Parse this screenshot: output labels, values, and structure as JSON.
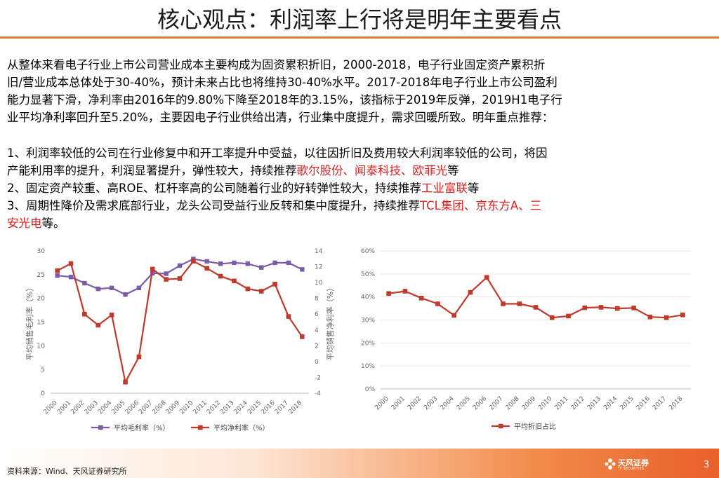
{
  "header": {
    "title": "核心观点：利润率上行将是明年主要看点"
  },
  "body": {
    "intro_lines": [
      "从整体来看电子行业上市公司营业成本主要构成为固资累积折旧，2000-2018，电子行业固定资产累积折",
      "旧/营业成本总体处于30-40%，预计未来占比也将维持30-40%水平。2017-2018年电子行业上市公司盈利",
      "能力显著下滑，净利率由2016年的9.80%下降至2018年的3.15%，该指标于2019年反弹，2019H1电子行",
      "业平均净利率回升至5.20%，主要因电子行业供给出清，行业集中度提升，需求回暖所致。明年重点推荐："
    ],
    "point1_line1": "1、利润率较低的公司在行业修复中和开工率提升中受益，以往因折旧及费用较大利润率较低的公司，将因",
    "point1_line2_prefix": "产能利用率的提升，利润显著提升，弹性较大，持续推荐",
    "point1_highlight": "歌尔股份、闻泰科技、欧菲光",
    "point1_suffix": "等",
    "point2_prefix": "2、固定资产较重、高ROE、杠杆率高的公司随着行业的好转弹性较大，持续推荐",
    "point2_highlight": "工业富联",
    "point2_suffix": "等",
    "point3_prefix": "3、周期性降价及需求底部行业，龙头公司受益行业反转和集中度提升，持续推荐",
    "point3_highlight_a": "TCL集团、京东方A、三",
    "point3_highlight_b": "安光电",
    "point3_suffix": "等。"
  },
  "chart_data": [
    {
      "type": "line",
      "categories": [
        "2000",
        "2001",
        "2002",
        "2003",
        "2004",
        "2005",
        "2006",
        "2007",
        "2008",
        "2009",
        "2010",
        "2011",
        "2012",
        "2013",
        "2014",
        "2015",
        "2016",
        "2017",
        "2018"
      ],
      "ylabel": "平均销售毛利率（%）",
      "y2label": "平均销售净利率（%）",
      "ylim": [
        0,
        30
      ],
      "yticks": [
        "0",
        "5",
        "10",
        "15",
        "20",
        "25",
        "30"
      ],
      "y2lim": [
        -4,
        14
      ],
      "y2ticks": [
        "-4",
        "-2",
        "0",
        "2",
        "4",
        "6",
        "8",
        "10",
        "12",
        "14"
      ],
      "legend_position": "bottom",
      "series": [
        {
          "name": "平均毛利率（%）",
          "axis": "left",
          "color": "#7b5ca8",
          "values": [
            24.8,
            24.5,
            23.2,
            22.0,
            22.2,
            20.8,
            22.2,
            25.3,
            25.2,
            26.9,
            28.3,
            27.8,
            27.3,
            27.5,
            27.3,
            26.5,
            27.5,
            27.5,
            26.1
          ]
        },
        {
          "name": "平均净利率（%）",
          "axis": "right",
          "color": "#c0392b",
          "values": [
            11.5,
            12.4,
            6.0,
            4.6,
            5.9,
            -2.6,
            0.6,
            11.7,
            10.4,
            10.5,
            12.7,
            11.8,
            10.8,
            10.2,
            9.2,
            8.9,
            9.8,
            5.7,
            3.15
          ]
        }
      ]
    },
    {
      "type": "line",
      "categories": [
        "2000",
        "2001",
        "2002",
        "2003",
        "2004",
        "2005",
        "2006",
        "2007",
        "2008",
        "2009",
        "2010",
        "2011",
        "2012",
        "2013",
        "2014",
        "2015",
        "2016",
        "2017",
        "2018"
      ],
      "ylim": [
        0,
        60
      ],
      "yticks": [
        "0%",
        "10%",
        "20%",
        "30%",
        "40%",
        "50%",
        "60%"
      ],
      "legend_position": "bottom",
      "series": [
        {
          "name": "平均折旧占比",
          "color": "#c0392b",
          "values": [
            41.5,
            42.5,
            39.5,
            37.0,
            32.0,
            42.0,
            48.5,
            37.0,
            37.0,
            35.5,
            31.0,
            31.7,
            35.3,
            35.5,
            35.0,
            35.2,
            31.3,
            31.0,
            32.2
          ]
        }
      ]
    }
  ],
  "footer": {
    "source": "资料来源：Wind、天风证券研究所",
    "logo_text": "天风证券",
    "logo_sub": "TF SECURITIES",
    "page_number": "3"
  }
}
